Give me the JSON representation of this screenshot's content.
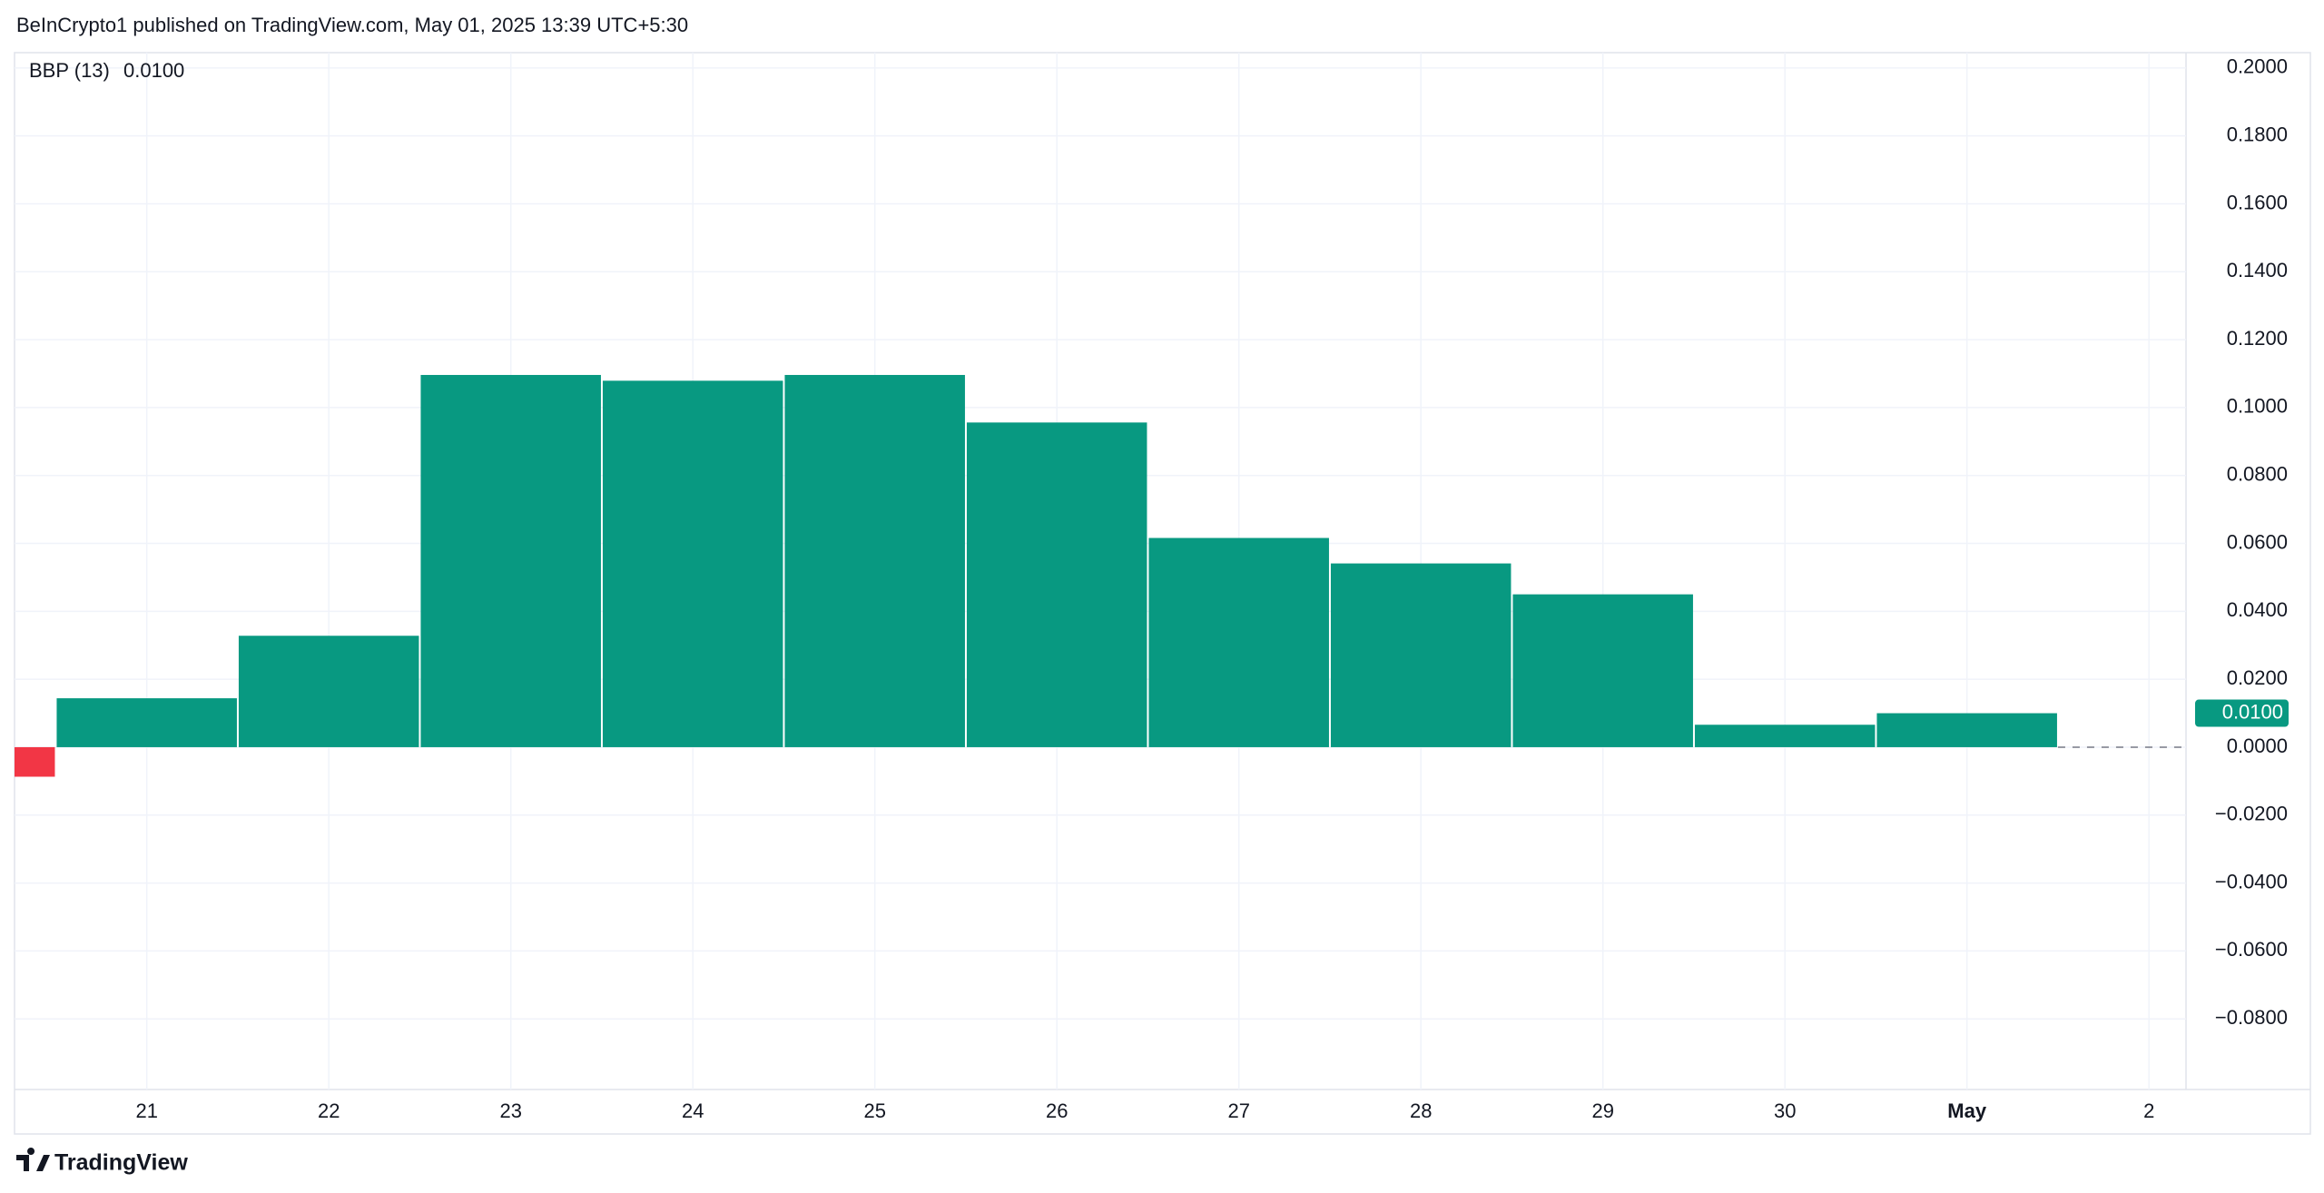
{
  "header": "BeInCrypto1 published on TradingView.com, May 01, 2025 13:39 UTC+5:30",
  "footer": "TradingView",
  "chart_data": {
    "type": "bar",
    "title": "BBP (13)",
    "categories": [
      null,
      "21",
      "22",
      "23",
      "24",
      "25",
      "26",
      "27",
      "28",
      "29",
      "30",
      "May",
      "2"
    ],
    "values": [
      -0.0087,
      0.0144,
      0.0328,
      0.1096,
      0.1079,
      0.1096,
      0.0956,
      0.0616,
      0.0541,
      0.045,
      0.0066,
      0.01,
      null
    ],
    "value_labels": [
      null,
      null,
      null,
      null,
      null,
      null,
      null,
      null,
      null,
      null,
      null,
      "0.0100",
      null
    ],
    "positive_color": "#089981",
    "negative_color": "#f23645",
    "ylim": [
      -0.1008,
      0.2045
    ],
    "yticks": [
      {
        "value": 0.2,
        "label": "0.2000"
      },
      {
        "value": 0.18,
        "label": "0.1800"
      },
      {
        "value": 0.16,
        "label": "0.1600"
      },
      {
        "value": 0.14,
        "label": "0.1400"
      },
      {
        "value": 0.12,
        "label": "0.1200"
      },
      {
        "value": 0.1,
        "label": "0.1000"
      },
      {
        "value": 0.08,
        "label": "0.0800"
      },
      {
        "value": 0.06,
        "label": "0.0600"
      },
      {
        "value": 0.04,
        "label": "0.0400"
      },
      {
        "value": 0.02,
        "label": "0.0200"
      },
      {
        "value": 0,
        "label": "0.0000"
      },
      {
        "value": -0.02,
        "label": "−0.0200"
      },
      {
        "value": -0.04,
        "label": "−0.0400"
      },
      {
        "value": -0.06,
        "label": "−0.0600"
      },
      {
        "value": -0.08,
        "label": "−0.0800"
      }
    ],
    "grid": true
  }
}
